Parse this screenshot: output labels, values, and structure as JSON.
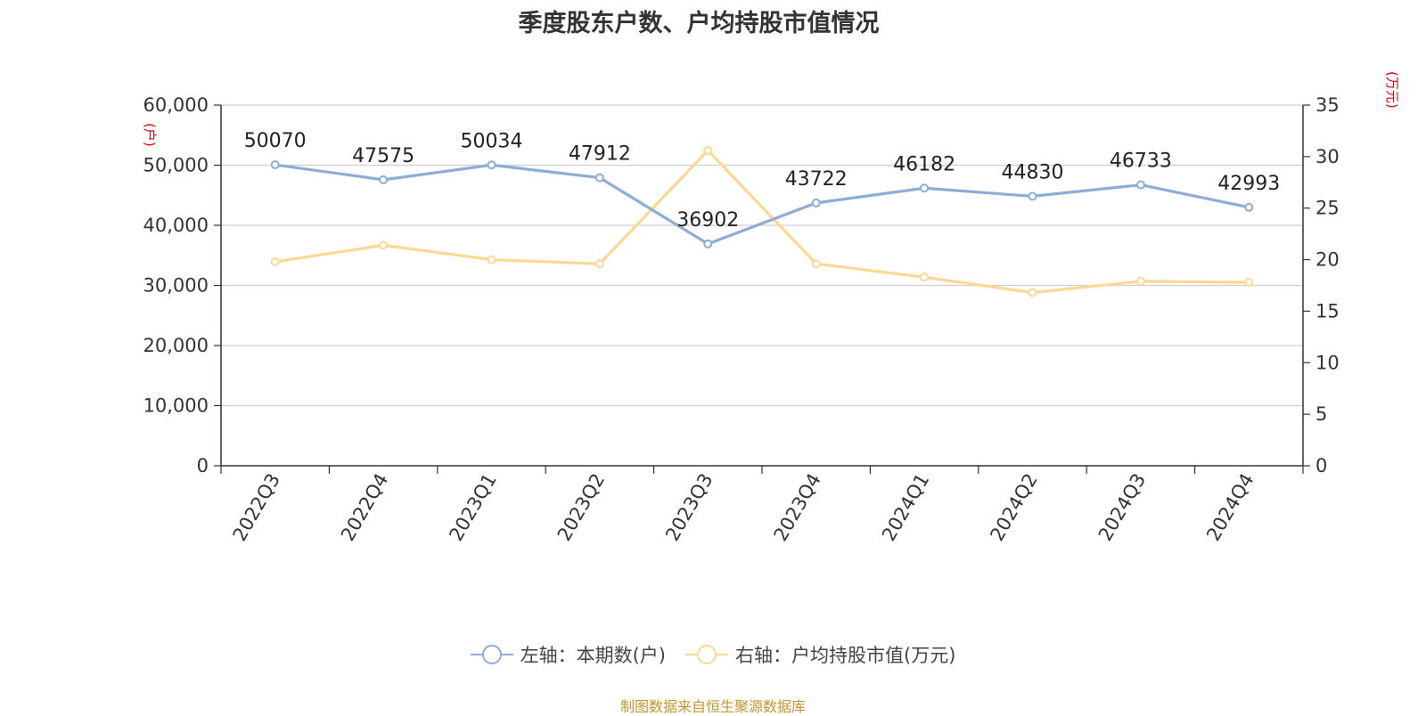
{
  "title": "季度股东户数、户均持股市值情况",
  "source": "制图数据来自恒生聚源数据库",
  "colors": {
    "left_series": "#8eacd8",
    "right_series": "#fdd893",
    "grid": "#cfcfcf",
    "axis": "#333333",
    "unit": "#e8000b",
    "source": "#c8962d",
    "text": "#333333"
  },
  "chart_data": {
    "type": "line",
    "categories": [
      "2022Q3",
      "2022Q4",
      "2023Q1",
      "2023Q2",
      "2023Q3",
      "2023Q4",
      "2024Q1",
      "2024Q2",
      "2024Q3",
      "2024Q4"
    ],
    "left_axis": {
      "unit": "(户)",
      "ylim": [
        0,
        60000
      ],
      "ticks": [
        "0",
        "10,000",
        "20,000",
        "30,000",
        "40,000",
        "50,000",
        "60,000"
      ]
    },
    "right_axis": {
      "unit": "(万元)",
      "ylim": [
        0,
        35
      ],
      "ticks": [
        "0",
        "5",
        "10",
        "15",
        "20",
        "25",
        "30",
        "35"
      ]
    },
    "series": [
      {
        "name": "左轴：本期数(户)",
        "axis": "left",
        "values": [
          50070,
          47575,
          50034,
          47912,
          36902,
          43722,
          46182,
          44830,
          46733,
          42993
        ],
        "data_labels": [
          "50070",
          "47575",
          "50034",
          "47912",
          "36902",
          "43722",
          "46182",
          "44830",
          "46733",
          "42993"
        ]
      },
      {
        "name": "右轴：户均持股市值(万元)",
        "axis": "right",
        "values": [
          19.8,
          21.4,
          20.0,
          19.6,
          30.6,
          19.6,
          18.3,
          16.8,
          17.9,
          17.8
        ]
      }
    ],
    "grid": true,
    "legend_position": "bottom"
  }
}
